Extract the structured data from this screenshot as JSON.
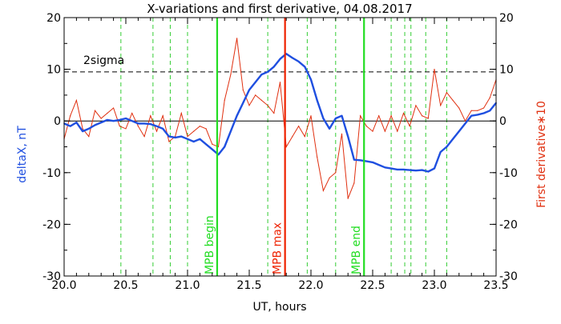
{
  "chart_data": {
    "type": "line",
    "title": "X-variations and first derivative, 04.08.2017",
    "xlabel": "UT, hours",
    "ylabel_left": "deltaX, nT",
    "ylabel_right": "First derivative∗10",
    "xlim": [
      20.0,
      23.5
    ],
    "ylim_left": [
      -30,
      20
    ],
    "ylim_right": [
      -30,
      20
    ],
    "x_ticks": [
      "20.0",
      "20.5",
      "21.0",
      "21.5",
      "22.0",
      "22.5",
      "23.0",
      "23.5"
    ],
    "x_tick_values": [
      20.0,
      20.5,
      21.0,
      21.5,
      22.0,
      22.5,
      23.0,
      23.5
    ],
    "y_ticks": [
      "20",
      "10",
      "0",
      "-10",
      "-20",
      "-30"
    ],
    "y_tick_values": [
      20,
      10,
      0,
      -10,
      -20,
      -30
    ],
    "colors": {
      "deltaX": "#1f4fe0",
      "derivative": "#e03010",
      "marker_green": "#22dd22",
      "marker_red": "#ee2200",
      "dashed_green": "#33cc33",
      "threshold": "#000000",
      "left_label": "#1f4fe0",
      "right_label": "#e03010"
    },
    "threshold": {
      "label": "2sigma",
      "y": 9.5
    },
    "zero_line": 0,
    "vertical_markers": [
      {
        "x": 21.24,
        "label": "MPB begin",
        "color": "#22dd22"
      },
      {
        "x": 21.79,
        "label": "MPB max",
        "color": "#ee2200"
      },
      {
        "x": 22.43,
        "label": "MPB end",
        "color": "#22dd22"
      }
    ],
    "dashed_verticals": [
      20.46,
      20.72,
      20.86,
      21.0,
      21.65,
      21.97,
      22.2,
      22.65,
      22.76,
      22.81,
      22.93,
      23.1
    ],
    "series": [
      {
        "name": "deltaX",
        "x": [
          20.0,
          20.05,
          20.1,
          20.15,
          20.2,
          20.25,
          20.3,
          20.35,
          20.4,
          20.45,
          20.5,
          20.55,
          20.6,
          20.65,
          20.7,
          20.75,
          20.8,
          20.85,
          20.9,
          20.95,
          21.0,
          21.05,
          21.1,
          21.15,
          21.2,
          21.25,
          21.3,
          21.35,
          21.4,
          21.45,
          21.5,
          21.55,
          21.6,
          21.65,
          21.7,
          21.75,
          21.8,
          21.85,
          21.9,
          21.95,
          22.0,
          22.05,
          22.1,
          22.15,
          22.2,
          22.25,
          22.3,
          22.35,
          22.4,
          22.45,
          22.5,
          22.55,
          22.6,
          22.65,
          22.7,
          22.75,
          22.8,
          22.85,
          22.9,
          22.95,
          23.0,
          23.05,
          23.1,
          23.15,
          23.2,
          23.25,
          23.3,
          23.35,
          23.4,
          23.45,
          23.5
        ],
        "values": [
          -0.5,
          -1.0,
          -0.3,
          -2.0,
          -1.5,
          -0.8,
          -0.3,
          0.2,
          0.0,
          0.2,
          0.5,
          0.0,
          -0.5,
          -0.5,
          -0.6,
          -1.0,
          -1.5,
          -3.0,
          -3.2,
          -3.0,
          -3.5,
          -4.0,
          -3.5,
          -4.5,
          -5.5,
          -6.5,
          -5.0,
          -2.0,
          1.0,
          3.5,
          6.0,
          7.5,
          9.0,
          9.5,
          10.5,
          12.0,
          13.0,
          12.2,
          11.5,
          10.5,
          8.0,
          4.0,
          0.5,
          -1.5,
          0.5,
          1.0,
          -3.0,
          -7.5,
          -7.6,
          -7.8,
          -8.0,
          -8.5,
          -9.0,
          -9.2,
          -9.4,
          -9.4,
          -9.5,
          -9.6,
          -9.5,
          -9.8,
          -9.2,
          -6.0,
          -5.0,
          -3.5,
          -2.0,
          -0.5,
          1.0,
          1.2,
          1.5,
          2.0,
          3.5
        ]
      },
      {
        "name": "First derivative∗10",
        "x": [
          20.0,
          20.05,
          20.1,
          20.15,
          20.2,
          20.25,
          20.3,
          20.35,
          20.4,
          20.45,
          20.5,
          20.55,
          20.6,
          20.65,
          20.7,
          20.75,
          20.8,
          20.85,
          20.9,
          20.95,
          21.0,
          21.05,
          21.1,
          21.15,
          21.2,
          21.25,
          21.3,
          21.35,
          21.4,
          21.45,
          21.5,
          21.55,
          21.6,
          21.65,
          21.7,
          21.75,
          21.8,
          21.85,
          21.9,
          21.95,
          22.0,
          22.05,
          22.1,
          22.15,
          22.2,
          22.25,
          22.3,
          22.35,
          22.4,
          22.45,
          22.5,
          22.55,
          22.6,
          22.65,
          22.7,
          22.75,
          22.8,
          22.85,
          22.9,
          22.95,
          23.0,
          23.05,
          23.1,
          23.15,
          23.2,
          23.25,
          23.3,
          23.35,
          23.4,
          23.45,
          23.5
        ],
        "values": [
          -3.5,
          1.0,
          4.0,
          -1.5,
          -3.0,
          2.0,
          0.5,
          1.5,
          2.5,
          -1.0,
          -1.5,
          1.5,
          -1.0,
          -3.0,
          1.0,
          -2.0,
          1.0,
          -4.0,
          -3.0,
          1.5,
          -3.0,
          -2.0,
          -1.0,
          -1.5,
          -4.5,
          -5.0,
          4.0,
          9.0,
          16.0,
          6.0,
          3.0,
          5.0,
          4.0,
          3.0,
          1.5,
          7.5,
          -5.0,
          -3.0,
          -1.0,
          -3.0,
          1.0,
          -7.0,
          -13.5,
          -11.0,
          -10.0,
          -2.5,
          -15.0,
          -12.0,
          1.0,
          -1.0,
          -2.0,
          1.0,
          -2.0,
          1.0,
          -2.0,
          1.5,
          -1.0,
          3.0,
          1.0,
          0.5,
          10.0,
          3.0,
          5.5,
          4.0,
          2.5,
          0.0,
          2.0,
          2.0,
          2.5,
          4.5,
          8.0
        ]
      }
    ]
  }
}
